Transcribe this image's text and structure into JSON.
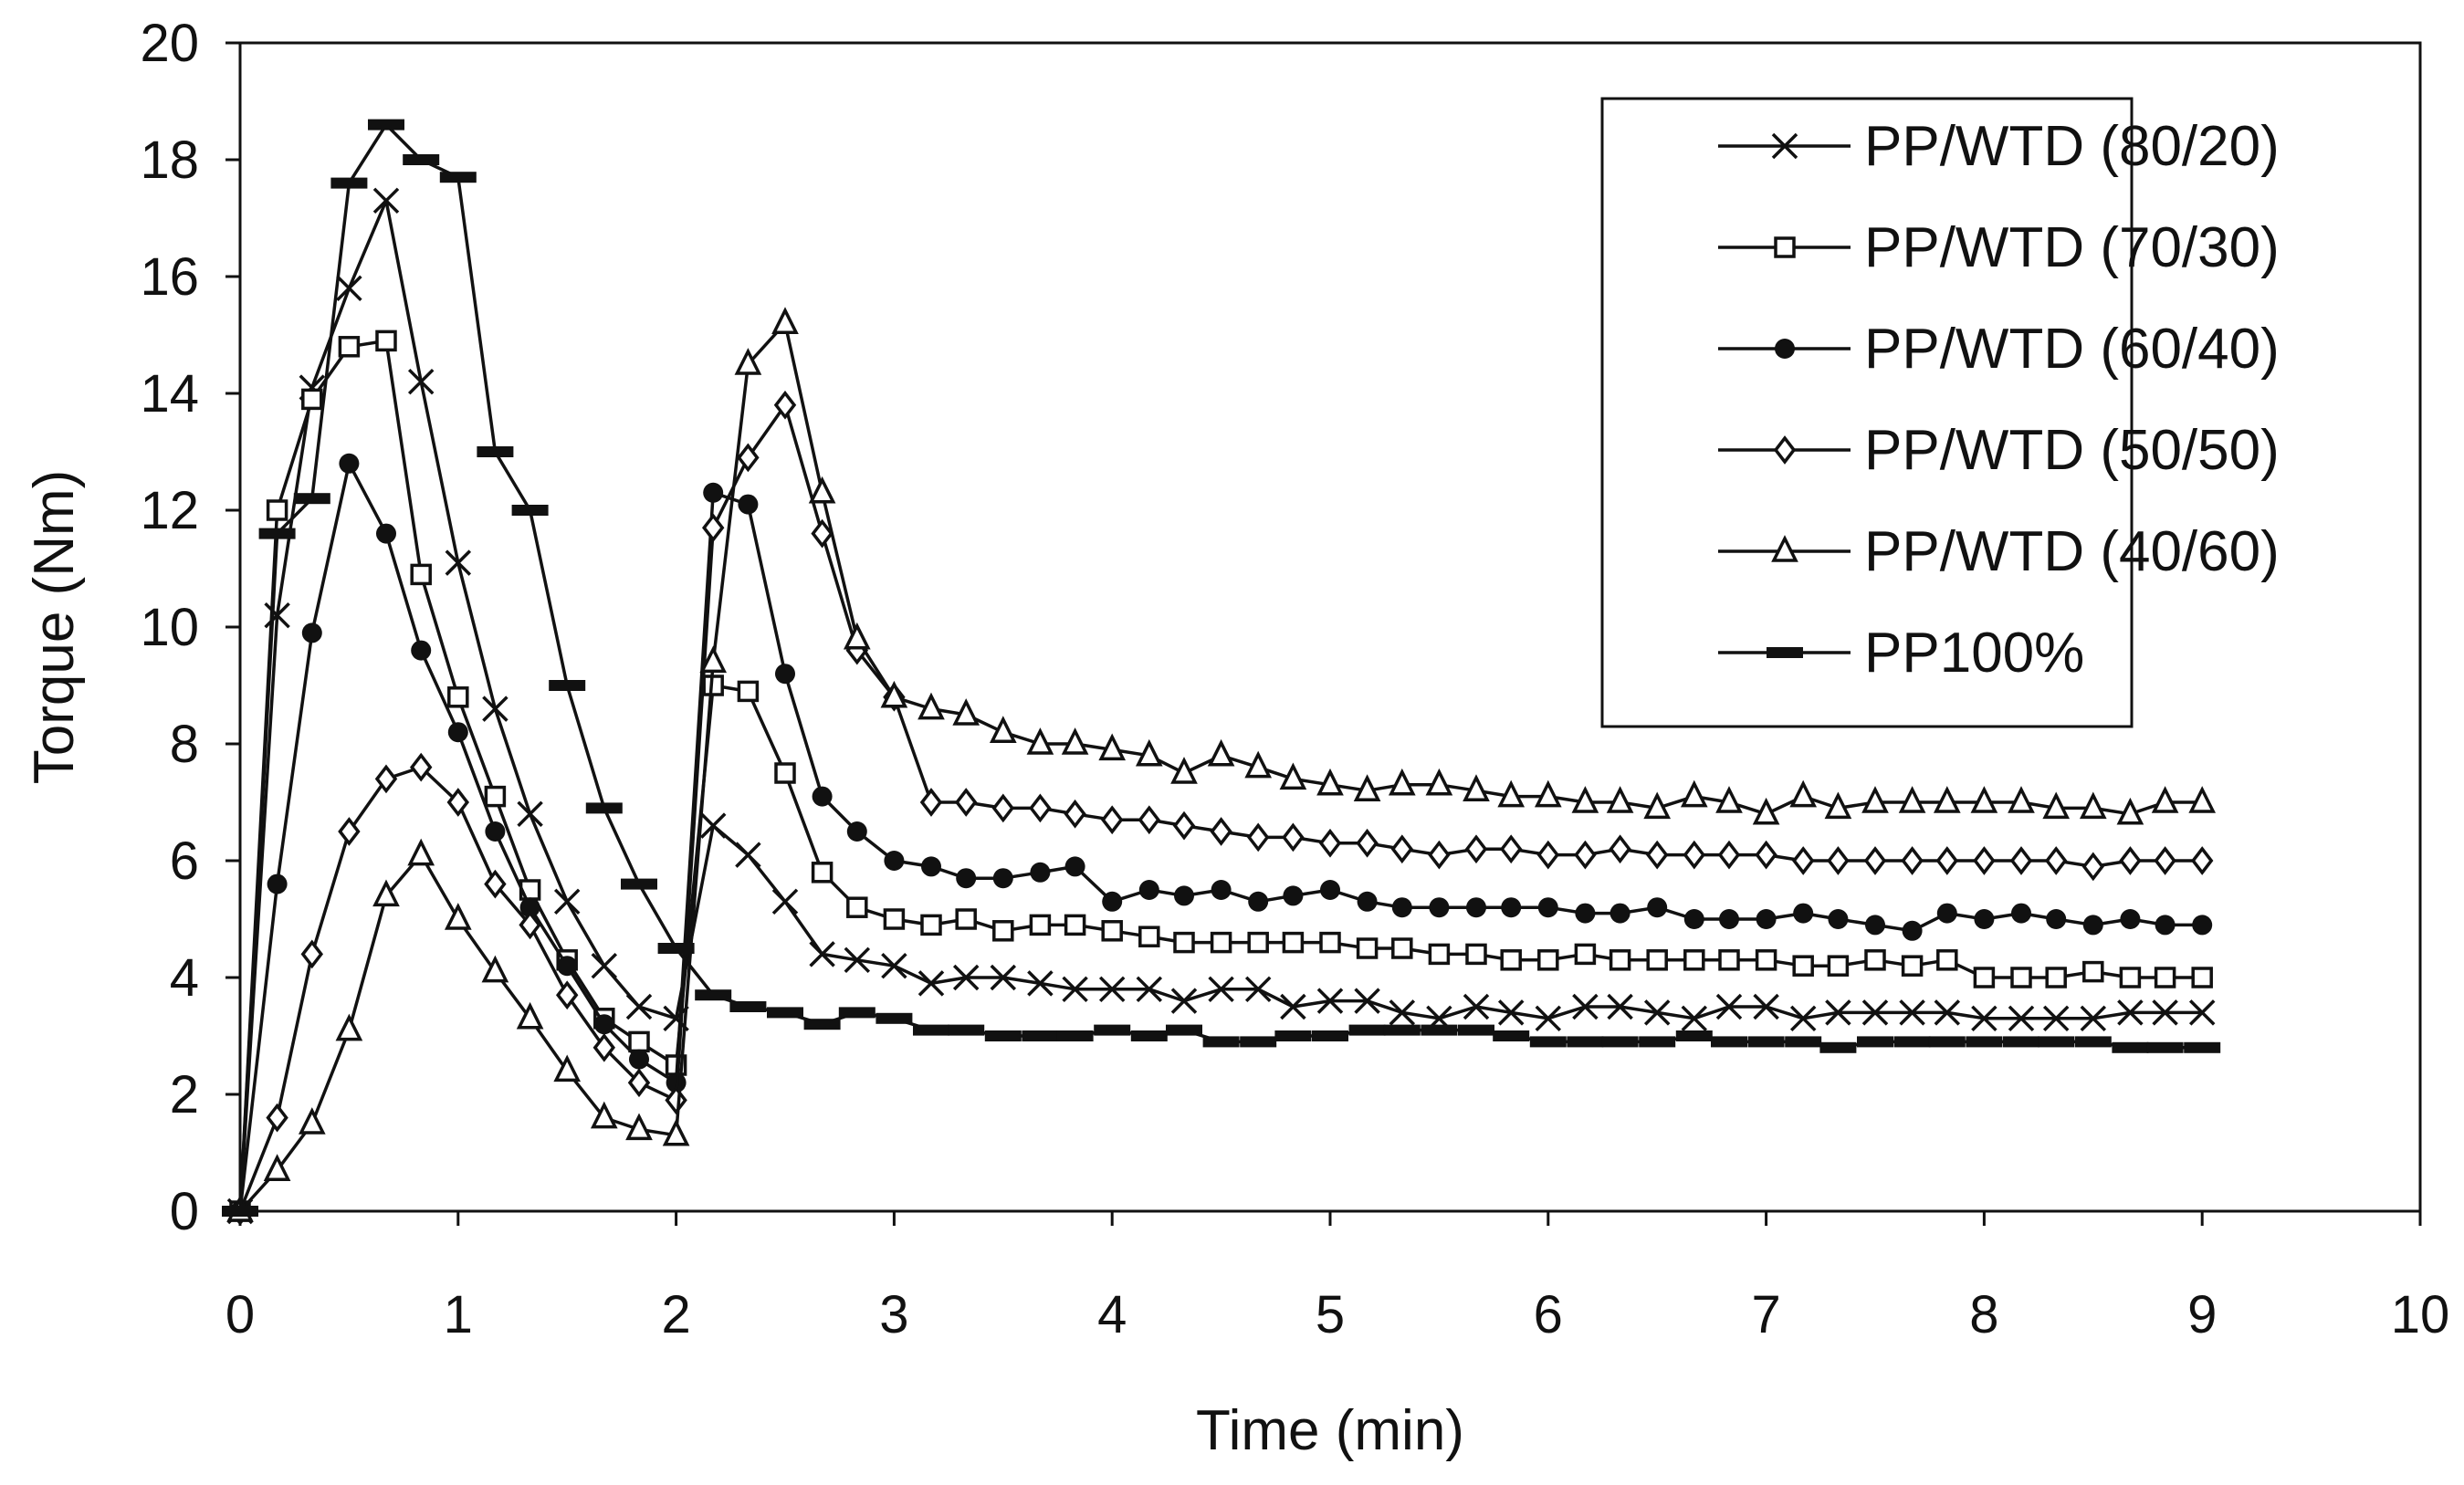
{
  "chart_data": {
    "type": "line",
    "title": "",
    "xlabel": "Time (min)",
    "ylabel": "Torque (Nm)",
    "xlim": [
      0,
      10
    ],
    "ylim": [
      0,
      20
    ],
    "xticks": [
      "0",
      "1",
      "2",
      "3",
      "4",
      "5",
      "6",
      "7",
      "8",
      "9",
      "10"
    ],
    "yticks": [
      "0",
      "2",
      "4",
      "6",
      "8",
      "10",
      "12",
      "14",
      "16",
      "18",
      "20"
    ],
    "grid": false,
    "legend_position": "top-right",
    "x": [
      0,
      0.17,
      0.33,
      0.5,
      0.67,
      0.83,
      1.0,
      1.17,
      1.33,
      1.5,
      1.67,
      1.83,
      2.0,
      2.17,
      2.33,
      2.5,
      2.67,
      2.83,
      3.0,
      3.17,
      3.33,
      3.5,
      3.67,
      3.83,
      4.0,
      4.17,
      4.33,
      4.5,
      4.67,
      4.83,
      5.0,
      5.17,
      5.33,
      5.5,
      5.67,
      5.83,
      6.0,
      6.17,
      6.33,
      6.5,
      6.67,
      6.83,
      7.0,
      7.17,
      7.33,
      7.5,
      7.67,
      7.83,
      8.0,
      8.17,
      8.33,
      8.5,
      8.67,
      8.83,
      9.0
    ],
    "series": [
      {
        "name": "PP/WTD (80/20)",
        "marker": "x",
        "values": [
          0,
          10.2,
          14.1,
          15.8,
          17.3,
          14.2,
          11.1,
          8.6,
          6.8,
          5.3,
          4.2,
          3.5,
          3.3,
          6.6,
          6.1,
          5.3,
          4.4,
          4.3,
          4.2,
          3.9,
          4.0,
          4.0,
          3.9,
          3.8,
          3.8,
          3.8,
          3.6,
          3.8,
          3.8,
          3.5,
          3.6,
          3.6,
          3.4,
          3.3,
          3.5,
          3.4,
          3.3,
          3.5,
          3.5,
          3.4,
          3.3,
          3.5,
          3.5,
          3.3,
          3.4,
          3.4,
          3.4,
          3.4,
          3.3,
          3.3,
          3.3,
          3.3,
          3.4,
          3.4,
          3.4
        ]
      },
      {
        "name": "PP/WTD (70/30)",
        "marker": "square",
        "values": [
          0,
          12.0,
          13.9,
          14.8,
          14.9,
          10.9,
          8.8,
          7.1,
          5.5,
          4.3,
          3.3,
          2.9,
          2.5,
          9.0,
          8.9,
          7.5,
          5.8,
          5.2,
          5.0,
          4.9,
          5.0,
          4.8,
          4.9,
          4.9,
          4.8,
          4.7,
          4.6,
          4.6,
          4.6,
          4.6,
          4.6,
          4.5,
          4.5,
          4.4,
          4.4,
          4.3,
          4.3,
          4.4,
          4.3,
          4.3,
          4.3,
          4.3,
          4.3,
          4.2,
          4.2,
          4.3,
          4.2,
          4.3,
          4.0,
          4.0,
          4.0,
          4.1,
          4.0,
          4.0,
          4.0
        ]
      },
      {
        "name": "PP/WTD (60/40)",
        "marker": "circle",
        "values": [
          0,
          5.6,
          9.9,
          12.8,
          11.6,
          9.6,
          8.2,
          6.5,
          5.2,
          4.2,
          3.2,
          2.6,
          2.2,
          12.3,
          12.1,
          9.2,
          7.1,
          6.5,
          6.0,
          5.9,
          5.7,
          5.7,
          5.8,
          5.9,
          5.3,
          5.5,
          5.4,
          5.5,
          5.3,
          5.4,
          5.5,
          5.3,
          5.2,
          5.2,
          5.2,
          5.2,
          5.2,
          5.1,
          5.1,
          5.2,
          5.0,
          5.0,
          5.0,
          5.1,
          5.0,
          4.9,
          4.8,
          5.1,
          5.0,
          5.1,
          5.0,
          4.9,
          5.0,
          4.9,
          4.9
        ]
      },
      {
        "name": "PP/WTD (50/50)",
        "marker": "diamond",
        "values": [
          0,
          1.6,
          4.4,
          6.5,
          7.4,
          7.6,
          7.0,
          5.6,
          4.9,
          3.7,
          2.8,
          2.2,
          1.9,
          11.7,
          12.9,
          13.8,
          11.6,
          9.6,
          8.8,
          7.0,
          7.0,
          6.9,
          6.9,
          6.8,
          6.7,
          6.7,
          6.6,
          6.5,
          6.4,
          6.4,
          6.3,
          6.3,
          6.2,
          6.1,
          6.2,
          6.2,
          6.1,
          6.1,
          6.2,
          6.1,
          6.1,
          6.1,
          6.1,
          6.0,
          6.0,
          6.0,
          6.0,
          6.0,
          6.0,
          6.0,
          6.0,
          5.9,
          6.0,
          6.0,
          6.0
        ]
      },
      {
        "name": "PP/WTD (40/60)",
        "marker": "triangle",
        "values": [
          0,
          0.7,
          1.5,
          3.1,
          5.4,
          6.1,
          5.0,
          4.1,
          3.3,
          2.4,
          1.6,
          1.4,
          1.3,
          9.4,
          14.5,
          15.2,
          12.3,
          9.8,
          8.8,
          8.6,
          8.5,
          8.2,
          8.0,
          8.0,
          7.9,
          7.8,
          7.5,
          7.8,
          7.6,
          7.4,
          7.3,
          7.2,
          7.3,
          7.3,
          7.2,
          7.1,
          7.1,
          7.0,
          7.0,
          6.9,
          7.1,
          7.0,
          6.8,
          7.1,
          6.9,
          7.0,
          7.0,
          7.0,
          7.0,
          7.0,
          6.9,
          6.9,
          6.8,
          7.0,
          7.0
        ]
      },
      {
        "name": "PP100%",
        "marker": "dash",
        "values": [
          0,
          11.6,
          12.2,
          17.6,
          18.6,
          18.0,
          17.7,
          13.0,
          12.0,
          9.0,
          6.9,
          5.6,
          4.5,
          3.7,
          3.5,
          3.4,
          3.2,
          3.4,
          3.3,
          3.1,
          3.1,
          3.0,
          3.0,
          3.0,
          3.1,
          3.0,
          3.1,
          2.9,
          2.9,
          3.0,
          3.0,
          3.1,
          3.1,
          3.1,
          3.1,
          3.0,
          2.9,
          2.9,
          2.9,
          2.9,
          3.0,
          2.9,
          2.9,
          2.9,
          2.8,
          2.9,
          2.9,
          2.9,
          2.9,
          2.9,
          2.9,
          2.9,
          2.8,
          2.8,
          2.8
        ]
      }
    ]
  }
}
